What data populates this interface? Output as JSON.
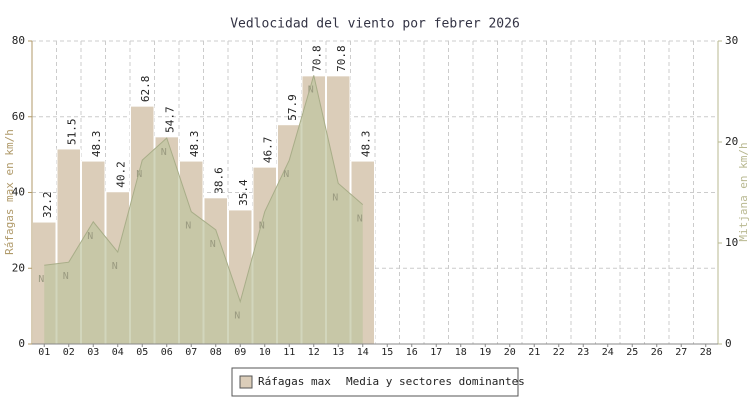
{
  "chart_data": {
    "type": "bar",
    "title": "Vedlocidad del viento por febrer 2026",
    "categories": [
      "01",
      "02",
      "03",
      "04",
      "05",
      "06",
      "07",
      "08",
      "09",
      "10",
      "11",
      "12",
      "13",
      "14",
      "15",
      "16",
      "17",
      "18",
      "19",
      "20",
      "21",
      "22",
      "23",
      "24",
      "25",
      "26",
      "27",
      "28"
    ],
    "ylabel": "Ráfagas max en km/h",
    "y2label": "Mitjana en km/h",
    "ylim": [
      0,
      80
    ],
    "yticks": [
      0,
      20,
      40,
      60,
      80
    ],
    "y2lim": [
      0,
      30
    ],
    "y2ticks": [
      0,
      10,
      20,
      30
    ],
    "grid": true,
    "legend": "bottom",
    "series": [
      {
        "name": "Ráfagas max",
        "type": "bar",
        "color": "#dbcdb9",
        "values": [
          32.2,
          51.5,
          48.3,
          40.2,
          62.8,
          54.7,
          48.3,
          38.6,
          35.4,
          46.7,
          57.9,
          70.8,
          70.8,
          48.3,
          null,
          null,
          null,
          null,
          null,
          null,
          null,
          null,
          null,
          null,
          null,
          null,
          null,
          null
        ]
      },
      {
        "name": "Media y sectores dominantes",
        "type": "area",
        "axis": "y2",
        "color": "#bfc4a0",
        "values": [
          7.8,
          8.1,
          12.1,
          9.1,
          18.2,
          20.4,
          13.1,
          11.3,
          4.2,
          13.1,
          18.2,
          26.6,
          15.9,
          13.8,
          null,
          null,
          null,
          null,
          null,
          null,
          null,
          null,
          null,
          null,
          null,
          null,
          null,
          null
        ],
        "sectors": [
          "N",
          "N",
          "N",
          "N",
          "N",
          "N",
          "N",
          "N",
          "N",
          "N",
          "N",
          "N",
          "N",
          "N",
          null,
          null,
          null,
          null,
          null,
          null,
          null,
          null,
          null,
          null,
          null,
          null,
          null,
          null
        ]
      }
    ]
  }
}
